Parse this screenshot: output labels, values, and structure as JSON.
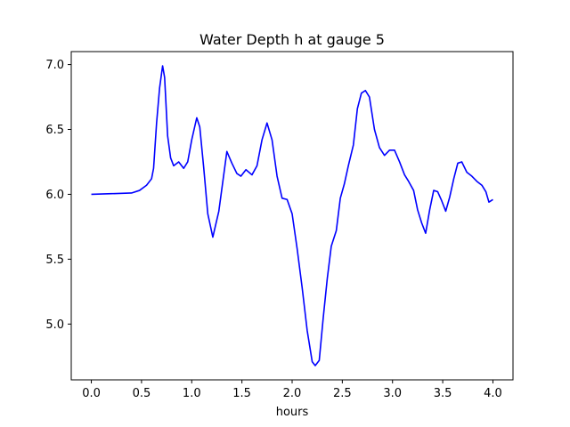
{
  "chart_data": {
    "type": "line",
    "title": "Water Depth h at gauge 5",
    "xlabel": "hours",
    "ylabel": "",
    "xlim": [
      -0.2,
      4.2
    ],
    "ylim": [
      4.57,
      7.1
    ],
    "xticks": [
      0.0,
      0.5,
      1.0,
      1.5,
      2.0,
      2.5,
      3.0,
      3.5,
      4.0
    ],
    "xtick_labels": [
      "0.0",
      "0.5",
      "1.0",
      "1.5",
      "2.0",
      "2.5",
      "3.0",
      "3.5",
      "4.0"
    ],
    "yticks": [
      5.0,
      5.5,
      6.0,
      6.5,
      7.0
    ],
    "ytick_labels": [
      "5.0",
      "5.5",
      "6.0",
      "6.5",
      "7.0"
    ],
    "grid": false,
    "series": [
      {
        "color": "#0000ff",
        "points": [
          [
            0.0,
            6.0
          ],
          [
            0.2,
            6.005
          ],
          [
            0.4,
            6.01
          ],
          [
            0.48,
            6.03
          ],
          [
            0.55,
            6.07
          ],
          [
            0.6,
            6.12
          ],
          [
            0.62,
            6.2
          ],
          [
            0.65,
            6.55
          ],
          [
            0.68,
            6.82
          ],
          [
            0.71,
            6.99
          ],
          [
            0.73,
            6.9
          ],
          [
            0.76,
            6.45
          ],
          [
            0.79,
            6.28
          ],
          [
            0.82,
            6.22
          ],
          [
            0.87,
            6.25
          ],
          [
            0.92,
            6.2
          ],
          [
            0.96,
            6.25
          ],
          [
            1.0,
            6.42
          ],
          [
            1.05,
            6.59
          ],
          [
            1.08,
            6.52
          ],
          [
            1.12,
            6.2
          ],
          [
            1.16,
            5.85
          ],
          [
            1.21,
            5.67
          ],
          [
            1.27,
            5.87
          ],
          [
            1.31,
            6.1
          ],
          [
            1.35,
            6.33
          ],
          [
            1.4,
            6.24
          ],
          [
            1.45,
            6.16
          ],
          [
            1.49,
            6.14
          ],
          [
            1.54,
            6.19
          ],
          [
            1.6,
            6.15
          ],
          [
            1.65,
            6.22
          ],
          [
            1.7,
            6.42
          ],
          [
            1.75,
            6.55
          ],
          [
            1.8,
            6.42
          ],
          [
            1.85,
            6.14
          ],
          [
            1.9,
            5.97
          ],
          [
            1.95,
            5.96
          ],
          [
            2.0,
            5.85
          ],
          [
            2.05,
            5.58
          ],
          [
            2.1,
            5.28
          ],
          [
            2.15,
            4.95
          ],
          [
            2.2,
            4.71
          ],
          [
            2.23,
            4.68
          ],
          [
            2.27,
            4.72
          ],
          [
            2.31,
            5.05
          ],
          [
            2.35,
            5.35
          ],
          [
            2.39,
            5.6
          ],
          [
            2.44,
            5.72
          ],
          [
            2.48,
            5.97
          ],
          [
            2.52,
            6.08
          ],
          [
            2.56,
            6.22
          ],
          [
            2.61,
            6.38
          ],
          [
            2.65,
            6.66
          ],
          [
            2.69,
            6.78
          ],
          [
            2.73,
            6.8
          ],
          [
            2.77,
            6.75
          ],
          [
            2.82,
            6.5
          ],
          [
            2.87,
            6.36
          ],
          [
            2.92,
            6.3
          ],
          [
            2.97,
            6.34
          ],
          [
            3.02,
            6.34
          ],
          [
            3.07,
            6.25
          ],
          [
            3.12,
            6.15
          ],
          [
            3.16,
            6.1
          ],
          [
            3.21,
            6.03
          ],
          [
            3.25,
            5.88
          ],
          [
            3.29,
            5.78
          ],
          [
            3.33,
            5.7
          ],
          [
            3.37,
            5.88
          ],
          [
            3.41,
            6.03
          ],
          [
            3.45,
            6.02
          ],
          [
            3.49,
            5.95
          ],
          [
            3.53,
            5.87
          ],
          [
            3.57,
            5.98
          ],
          [
            3.61,
            6.12
          ],
          [
            3.65,
            6.24
          ],
          [
            3.69,
            6.25
          ],
          [
            3.74,
            6.17
          ],
          [
            3.79,
            6.14
          ],
          [
            3.84,
            6.1
          ],
          [
            3.89,
            6.07
          ],
          [
            3.93,
            6.02
          ],
          [
            3.96,
            5.94
          ],
          [
            4.0,
            5.96
          ]
        ]
      }
    ]
  }
}
